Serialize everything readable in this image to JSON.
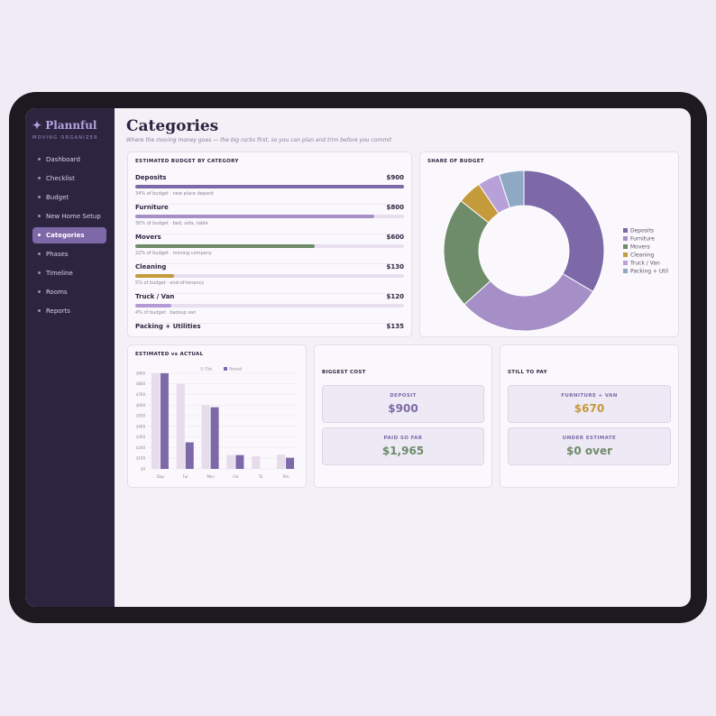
{
  "sidebar": {
    "brand": "✦ Plannful",
    "tagline": "MOVING ORGANIZER",
    "nav": [
      "Dashboard",
      "Checklist",
      "Budget",
      "New Home Setup",
      "Categories",
      "Phases",
      "Timeline",
      "Rooms",
      "Reports"
    ],
    "active": "Categories"
  },
  "header": {
    "title": "Categories",
    "subtitle": "Where the moving money goes — the big rocks first, so you can plan and trim before you commit"
  },
  "budget_card": {
    "title": "ESTIMATED BUDGET BY CATEGORY",
    "rows": [
      {
        "name": "Deposits",
        "amount": 900,
        "amount_label": "$900",
        "note": "34% of budget · new place deposit",
        "color": "#7d68a8"
      },
      {
        "name": "Furniture",
        "amount": 800,
        "amount_label": "$800",
        "note": "30% of budget · bed, sofa, table",
        "color": "#a58fc6"
      },
      {
        "name": "Movers",
        "amount": 600,
        "amount_label": "$600",
        "note": "22% of budget · moving company",
        "color": "#6e8b6a"
      },
      {
        "name": "Cleaning",
        "amount": 130,
        "amount_label": "$130",
        "note": "5% of budget · end-of-tenancy",
        "color": "#c49a3a"
      },
      {
        "name": "Truck / Van",
        "amount": 120,
        "amount_label": "$120",
        "note": "4% of budget · backup van",
        "color": "#b59ad6"
      },
      {
        "name": "Packing + Utilities",
        "amount": 135,
        "amount_label": "$135",
        "color": "#8fa8c4"
      }
    ]
  },
  "chart_data": [
    {
      "type": "pie",
      "title": "SHARE OF BUDGET",
      "categories": [
        "Deposits",
        "Furniture",
        "Movers",
        "Cleaning",
        "Truck / Van",
        "Packing + Util"
      ],
      "values": [
        900,
        800,
        600,
        130,
        120,
        135
      ],
      "colors": [
        "#7d68a8",
        "#a58fc6",
        "#6e8b6a",
        "#c49a3a",
        "#b8a0d8",
        "#8fa8c4"
      ],
      "legend": "right"
    },
    {
      "type": "bar",
      "title": "ESTIMATED vs ACTUAL",
      "categories": [
        "Dep",
        "Fur",
        "Mov",
        "Cle",
        "Tk",
        "Pck"
      ],
      "series": [
        {
          "name": "Est.",
          "color": "#e6dcec",
          "values": [
            900,
            800,
            600,
            130,
            120,
            135
          ]
        },
        {
          "name": "Actual",
          "color": "#7d68a8",
          "values": [
            900,
            250,
            580,
            130,
            0,
            105
          ]
        }
      ],
      "ylim": [
        0,
        950
      ],
      "yticks": [
        {
          "value": 0,
          "label": "$0"
        },
        {
          "value": 100,
          "label": "$100"
        },
        {
          "value": 200,
          "label": "$200"
        },
        {
          "value": 300,
          "label": "$300"
        },
        {
          "value": 400,
          "label": "$400"
        },
        {
          "value": 500,
          "label": "$500"
        },
        {
          "value": 600,
          "label": "$600"
        },
        {
          "value": 700,
          "label": "$700"
        },
        {
          "value": 800,
          "label": "$800"
        },
        {
          "value": 900,
          "label": "$900"
        }
      ],
      "grid": true,
      "legend": "top"
    }
  ],
  "biggest_cost": {
    "title": "BIGGEST COST",
    "tiles": [
      {
        "label": "DEPOSIT",
        "value": "$900",
        "color": "#7d68a8"
      },
      {
        "label": "PAID SO FAR",
        "value": "$1,965",
        "color": "#6e8b6a"
      }
    ]
  },
  "still_to_pay": {
    "title": "STILL TO PAY",
    "tiles": [
      {
        "label": "FURNITURE + VAN",
        "value": "$670",
        "color": "#c49a3a"
      },
      {
        "label": "UNDER ESTIMATE",
        "value": "$0 over",
        "color": "#6e8b6a"
      }
    ]
  }
}
